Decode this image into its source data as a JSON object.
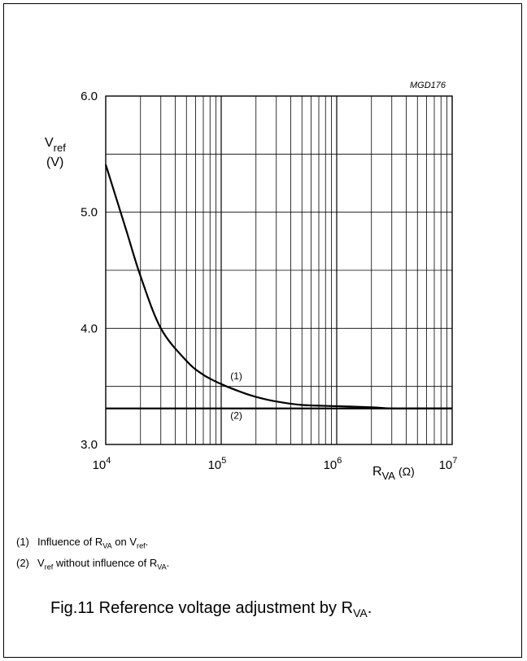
{
  "chart_data": {
    "type": "line",
    "id_label": "MGD176",
    "ylabel_main": "V",
    "ylabel_sub": "ref",
    "ylabel_unit": "(V)",
    "xlabel_main": "R",
    "xlabel_sub": "VA",
    "xlabel_unit": "(Ω)",
    "x_scale": "log",
    "xlim": [
      10000,
      10000000
    ],
    "ylim": [
      3.0,
      6.0
    ],
    "x_major_ticks": [
      {
        "base": "10",
        "exp": "4",
        "value": 10000
      },
      {
        "base": "10",
        "exp": "5",
        "value": 100000
      },
      {
        "base": "10",
        "exp": "6",
        "value": 1000000
      },
      {
        "base": "10",
        "exp": "7",
        "value": 10000000
      }
    ],
    "y_ticks": [
      {
        "label": "3.0",
        "value": 3.0
      },
      {
        "label": "4.0",
        "value": 4.0
      },
      {
        "label": "5.0",
        "value": 5.0
      },
      {
        "label": "6.0",
        "value": 6.0
      }
    ],
    "y_minor_gridlines": [
      3.5,
      4.5,
      5.5
    ],
    "grid": true,
    "series": [
      {
        "name": "(1)",
        "x": [
          10000,
          15000,
          20000,
          30000,
          50000,
          70000,
          100000,
          150000,
          200000,
          300000,
          500000,
          1000000,
          2000000,
          3000000,
          5000000,
          10000000
        ],
        "y": [
          5.41,
          4.85,
          4.45,
          4.0,
          3.72,
          3.6,
          3.52,
          3.45,
          3.41,
          3.37,
          3.34,
          3.33,
          3.32,
          3.31,
          3.31,
          3.31
        ],
        "label_at": {
          "x": 120000,
          "y": 3.56
        }
      },
      {
        "name": "(2)",
        "x": [
          10000,
          10000000
        ],
        "y": [
          3.31,
          3.31
        ],
        "label_at": {
          "x": 120000,
          "y": 3.22
        }
      }
    ]
  },
  "notes": [
    {
      "num": "(1)",
      "t1": "Influence of R",
      "t1_sub": "VA",
      "t2": " on V",
      "t2_sub": "ref",
      "t3": "."
    },
    {
      "num": "(2)",
      "t1": "V",
      "t1_sub": "ref",
      "t2": " without influence of R",
      "t2_sub": "VA",
      "t3": "."
    }
  ],
  "caption": {
    "text": "Fig.11  Reference voltage adjustment by R",
    "sub": "VA",
    "end": "."
  }
}
